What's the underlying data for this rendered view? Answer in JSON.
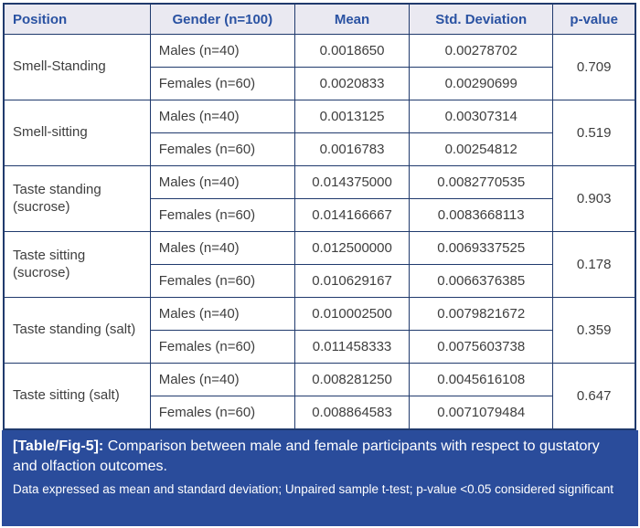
{
  "table": {
    "headers": [
      "Position",
      "Gender (n=100)",
      "Mean",
      "Std. Deviation",
      "p-value"
    ],
    "groups": [
      {
        "position": "Smell-Standing",
        "p_value": "0.709",
        "rows": [
          {
            "gender": "Males (n=40)",
            "mean": "0.0018650",
            "sd": "0.00278702"
          },
          {
            "gender": "Females (n=60)",
            "mean": "0.0020833",
            "sd": "0.00290699"
          }
        ]
      },
      {
        "position": "Smell-sitting",
        "p_value": "0.519",
        "rows": [
          {
            "gender": "Males (n=40)",
            "mean": "0.0013125",
            "sd": "0.00307314"
          },
          {
            "gender": "Females (n=60)",
            "mean": "0.0016783",
            "sd": "0.00254812"
          }
        ]
      },
      {
        "position": "Taste standing (sucrose)",
        "p_value": "0.903",
        "rows": [
          {
            "gender": "Males (n=40)",
            "mean": "0.014375000",
            "sd": "0.0082770535"
          },
          {
            "gender": "Females (n=60)",
            "mean": "0.014166667",
            "sd": "0.0083668113"
          }
        ]
      },
      {
        "position": "Taste sitting (sucrose)",
        "p_value": "0.178",
        "rows": [
          {
            "gender": "Males (n=40)",
            "mean": "0.012500000",
            "sd": "0.0069337525"
          },
          {
            "gender": "Females (n=60)",
            "mean": "0.010629167",
            "sd": "0.0066376385"
          }
        ]
      },
      {
        "position": "Taste standing (salt)",
        "p_value": "0.359",
        "rows": [
          {
            "gender": "Males (n=40)",
            "mean": "0.010002500",
            "sd": "0.0079821672"
          },
          {
            "gender": "Females (n=60)",
            "mean": "0.011458333",
            "sd": "0.0075603738"
          }
        ]
      },
      {
        "position": "Taste sitting (salt)",
        "p_value": "0.647",
        "rows": [
          {
            "gender": "Males (n=40)",
            "mean": "0.008281250",
            "sd": "0.0045616108"
          },
          {
            "gender": "Females (n=60)",
            "mean": "0.008864583",
            "sd": "0.0071079484"
          }
        ]
      }
    ]
  },
  "caption": {
    "label": "[Table/Fig-5]:",
    "text": "Comparison between male and female participants with respect to gustatory and olfaction outcomes.",
    "note": "Data expressed as mean and standard deviation; Unpaired sample t-test; p-value <0.05 considered significant"
  },
  "colors": {
    "header_bg": "#eae9f1",
    "header_text": "#2a52a2",
    "border": "#203a6d",
    "body_text": "#3e3e3e",
    "caption_bg": "#2a4c9b",
    "caption_text": "#ffffff"
  }
}
